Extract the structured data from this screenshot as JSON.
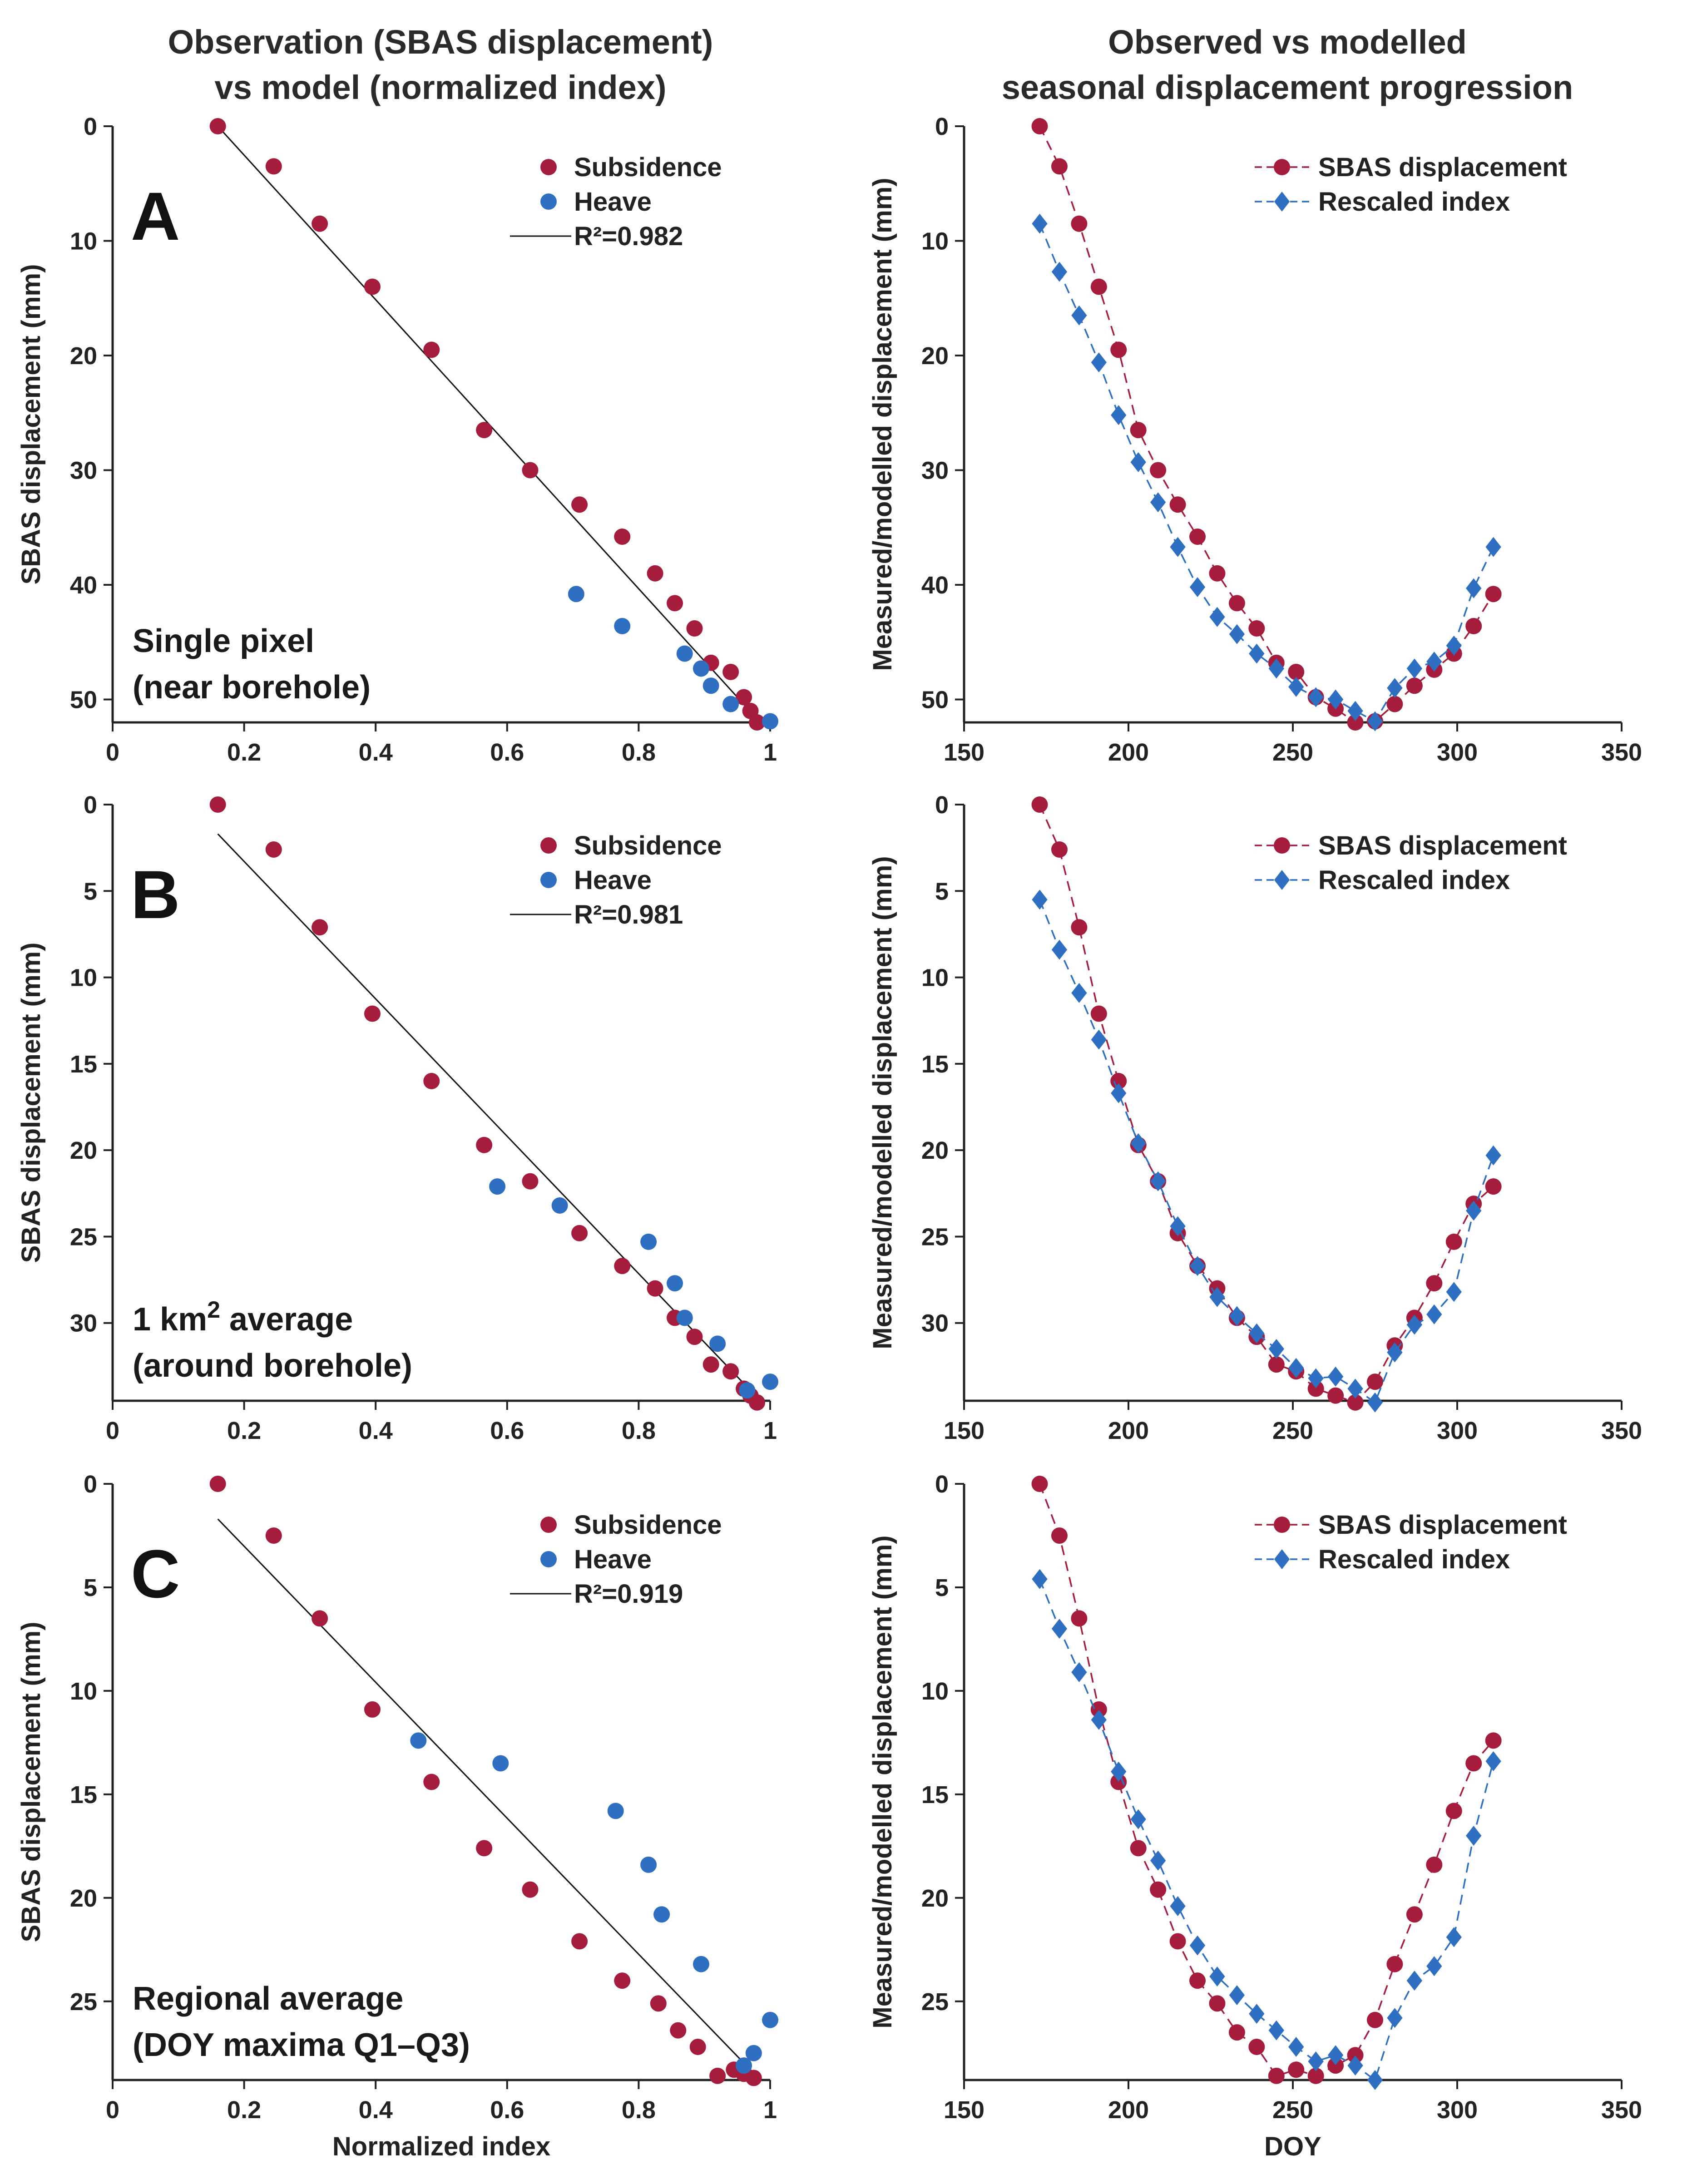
{
  "column_titles": {
    "left": [
      "Observation (SBAS displacement)",
      "vs model (normalized index)"
    ],
    "right": [
      "Observed vs modelled",
      "seasonal displacement progression"
    ]
  },
  "colors": {
    "subsidence": "#a51c3c",
    "heave": "#2e6fc2",
    "fit": "#111111"
  },
  "legend": {
    "subsidence": "Subsidence",
    "heave": "Heave",
    "sbas": "SBAS displacement",
    "rescaled": "Rescaled index"
  },
  "chart_data": [
    {
      "type": "scatter",
      "panel_letter": "A",
      "annotation": [
        "Single pixel",
        "(near borehole)"
      ],
      "xlabel": "",
      "ylabel": "SBAS displacement (mm)",
      "xlim": [
        0,
        1
      ],
      "ylim": [
        0,
        52
      ],
      "y_inverted": true,
      "xticks": [
        0,
        0.2,
        0.4,
        0.6,
        0.8,
        1
      ],
      "xtick_labels": [
        "0",
        "0.2",
        "0.4",
        "0.6",
        "0.8",
        "1"
      ],
      "yticks": [
        0,
        10,
        20,
        30,
        40,
        50
      ],
      "fit": {
        "label": "R²=0.982",
        "x": [
          0.16,
          0.985
        ],
        "y": [
          0,
          52
        ]
      },
      "series": [
        {
          "name": "Subsidence",
          "x": [
            0.16,
            0.245,
            0.315,
            0.395,
            0.485,
            0.565,
            0.635,
            0.71,
            0.775,
            0.825,
            0.855,
            0.885,
            0.91,
            0.94,
            0.96,
            0.97,
            0.98
          ],
          "y": [
            0,
            3.5,
            8.5,
            14,
            19.5,
            26.5,
            30,
            33,
            35.8,
            39,
            41.6,
            43.8,
            46.8,
            47.6,
            49.8,
            51,
            52
          ]
        },
        {
          "name": "Heave",
          "x": [
            0.705,
            0.775,
            0.87,
            0.895,
            0.91,
            0.94,
            1.0
          ],
          "y": [
            40.8,
            43.6,
            46,
            47.3,
            48.8,
            50.4,
            51.9
          ]
        }
      ]
    },
    {
      "type": "line",
      "xlabel": "",
      "ylabel": "Measured/modelled displacement (mm)",
      "xlim": [
        150,
        350
      ],
      "ylim": [
        0,
        52
      ],
      "y_inverted": true,
      "xticks": [
        150,
        200,
        250,
        300,
        350
      ],
      "yticks": [
        0,
        10,
        20,
        30,
        40,
        50
      ],
      "series": [
        {
          "name": "SBAS displacement",
          "x": [
            173,
            179,
            185,
            191,
            197,
            203,
            209,
            215,
            221,
            227,
            233,
            239,
            245,
            251,
            257,
            263,
            269,
            275,
            281,
            287,
            293,
            299,
            305,
            311
          ],
          "y": [
            0,
            3.5,
            8.5,
            14,
            19.5,
            26.5,
            30,
            33,
            35.8,
            39,
            41.6,
            43.8,
            46.8,
            47.6,
            49.8,
            50.8,
            52,
            51.9,
            50.4,
            48.8,
            47.4,
            46,
            43.6,
            40.8
          ]
        },
        {
          "name": "Rescaled index",
          "x": [
            173,
            179,
            185,
            191,
            197,
            203,
            209,
            215,
            221,
            227,
            233,
            239,
            245,
            251,
            257,
            263,
            269,
            275,
            281,
            287,
            293,
            299,
            305,
            311
          ],
          "y": [
            8.5,
            12.7,
            16.5,
            20.6,
            25.2,
            29.3,
            32.8,
            36.7,
            40.2,
            42.8,
            44.3,
            46,
            47.3,
            48.9,
            49.8,
            50,
            51,
            51.9,
            49,
            47.3,
            46.7,
            45.3,
            40.3,
            36.7
          ]
        }
      ]
    },
    {
      "type": "scatter",
      "panel_letter": "B",
      "annotation": [
        "1 km² average",
        "(around borehole)"
      ],
      "xlabel": "",
      "ylabel": "SBAS displacement (mm)",
      "xlim": [
        0,
        1
      ],
      "ylim": [
        0,
        34.5
      ],
      "y_inverted": true,
      "xticks": [
        0,
        0.2,
        0.4,
        0.6,
        0.8,
        1
      ],
      "xtick_labels": [
        "0",
        "0.2",
        "0.4",
        "0.6",
        "0.8",
        "1"
      ],
      "yticks": [
        0,
        5,
        10,
        15,
        20,
        25,
        30
      ],
      "fit": {
        "label": "R²=0.981",
        "x": [
          0.16,
          0.985
        ],
        "y": [
          1.7,
          34.5
        ]
      },
      "series": [
        {
          "name": "Subsidence",
          "x": [
            0.16,
            0.245,
            0.315,
            0.395,
            0.485,
            0.565,
            0.635,
            0.71,
            0.775,
            0.825,
            0.855,
            0.885,
            0.91,
            0.94,
            0.96,
            0.97,
            0.98
          ],
          "y": [
            0,
            2.6,
            7.1,
            12.1,
            16,
            19.7,
            21.8,
            24.8,
            26.7,
            28,
            29.7,
            30.8,
            32.4,
            32.8,
            33.8,
            34.2,
            34.6
          ]
        },
        {
          "name": "Heave",
          "x": [
            0.585,
            0.68,
            0.815,
            0.855,
            0.87,
            0.92,
            0.965,
            1.0
          ],
          "y": [
            22.1,
            23.2,
            25.3,
            27.7,
            29.7,
            31.2,
            33.9,
            33.4
          ]
        }
      ]
    },
    {
      "type": "line",
      "xlabel": "",
      "ylabel": "Measured/modelled displacement (mm)",
      "xlim": [
        150,
        350
      ],
      "ylim": [
        0,
        34.5
      ],
      "y_inverted": true,
      "xticks": [
        150,
        200,
        250,
        300,
        350
      ],
      "yticks": [
        0,
        5,
        10,
        15,
        20,
        25,
        30
      ],
      "series": [
        {
          "name": "SBAS displacement",
          "x": [
            173,
            179,
            185,
            191,
            197,
            203,
            209,
            215,
            221,
            227,
            233,
            239,
            245,
            251,
            257,
            263,
            269,
            275,
            281,
            287,
            293,
            299,
            305,
            311
          ],
          "y": [
            0,
            2.6,
            7.1,
            12.1,
            16,
            19.7,
            21.8,
            24.8,
            26.7,
            28,
            29.7,
            30.8,
            32.4,
            32.8,
            33.8,
            34.2,
            34.6,
            33.4,
            31.3,
            29.7,
            27.7,
            25.3,
            23.1,
            22.1
          ]
        },
        {
          "name": "Rescaled index",
          "x": [
            173,
            179,
            185,
            191,
            197,
            203,
            209,
            215,
            221,
            227,
            233,
            239,
            245,
            251,
            257,
            263,
            269,
            275,
            281,
            287,
            293,
            299,
            305,
            311
          ],
          "y": [
            5.5,
            8.4,
            10.9,
            13.6,
            16.7,
            19.6,
            21.8,
            24.4,
            26.7,
            28.5,
            29.6,
            30.6,
            31.5,
            32.6,
            33.2,
            33.1,
            33.8,
            34.6,
            31.7,
            30.1,
            29.5,
            28.2,
            23.5,
            20.3
          ]
        }
      ]
    },
    {
      "type": "scatter",
      "panel_letter": "C",
      "annotation": [
        "Regional average",
        "(DOY maxima Q1–Q3)"
      ],
      "xlabel": "Normalized index",
      "ylabel": "SBAS displacement (mm)",
      "xlim": [
        0,
        1
      ],
      "ylim": [
        0,
        28.8
      ],
      "y_inverted": true,
      "xticks": [
        0,
        0.2,
        0.4,
        0.6,
        0.8,
        1
      ],
      "xtick_labels": [
        "0",
        "0.2",
        "0.4",
        "0.6",
        "0.8",
        "1"
      ],
      "yticks": [
        0,
        5,
        10,
        15,
        20,
        25
      ],
      "fit": {
        "label": "R²=0.919",
        "x": [
          0.16,
          0.985
        ],
        "y": [
          1.7,
          28.8
        ]
      },
      "series": [
        {
          "name": "Subsidence",
          "x": [
            0.16,
            0.245,
            0.315,
            0.395,
            0.485,
            0.565,
            0.635,
            0.71,
            0.775,
            0.83,
            0.86,
            0.89,
            0.92,
            0.945,
            0.96,
            0.975
          ],
          "y": [
            0,
            2.5,
            6.5,
            10.9,
            14.4,
            17.6,
            19.6,
            22.1,
            24,
            25.1,
            26.4,
            27.2,
            28.6,
            28.3,
            28.5,
            28.7
          ]
        },
        {
          "name": "Heave",
          "x": [
            0.465,
            0.59,
            0.765,
            0.815,
            0.835,
            0.895,
            0.96,
            0.975,
            1.0
          ],
          "y": [
            12.4,
            13.5,
            15.8,
            18.4,
            20.8,
            23.2,
            28.1,
            27.5,
            25.9
          ]
        }
      ]
    },
    {
      "type": "line",
      "xlabel": "DOY",
      "ylabel": "Measured/modelled displacement (mm)",
      "xlim": [
        150,
        350
      ],
      "ylim": [
        0,
        28.8
      ],
      "y_inverted": true,
      "xticks": [
        150,
        200,
        250,
        300,
        350
      ],
      "yticks": [
        0,
        5,
        10,
        15,
        20,
        25
      ],
      "series": [
        {
          "name": "SBAS displacement",
          "x": [
            173,
            179,
            185,
            191,
            197,
            203,
            209,
            215,
            221,
            227,
            233,
            239,
            245,
            251,
            257,
            263,
            269,
            275,
            281,
            287,
            293,
            299,
            305,
            311
          ],
          "y": [
            0,
            2.5,
            6.5,
            10.9,
            14.4,
            17.6,
            19.6,
            22.1,
            24,
            25.1,
            26.5,
            27.2,
            28.6,
            28.3,
            28.6,
            28.1,
            27.6,
            25.9,
            23.2,
            20.8,
            18.4,
            15.8,
            13.5,
            12.4
          ]
        },
        {
          "name": "Rescaled index",
          "x": [
            173,
            179,
            185,
            191,
            197,
            203,
            209,
            215,
            221,
            227,
            233,
            239,
            245,
            251,
            257,
            263,
            269,
            275,
            281,
            287,
            293,
            299,
            305,
            311
          ],
          "y": [
            4.6,
            7,
            9.1,
            11.4,
            13.9,
            16.2,
            18.2,
            20.4,
            22.3,
            23.8,
            24.7,
            25.6,
            26.4,
            27.2,
            27.9,
            27.6,
            28.1,
            28.8,
            25.8,
            24,
            23.3,
            21.9,
            17,
            13.4
          ]
        }
      ]
    }
  ]
}
